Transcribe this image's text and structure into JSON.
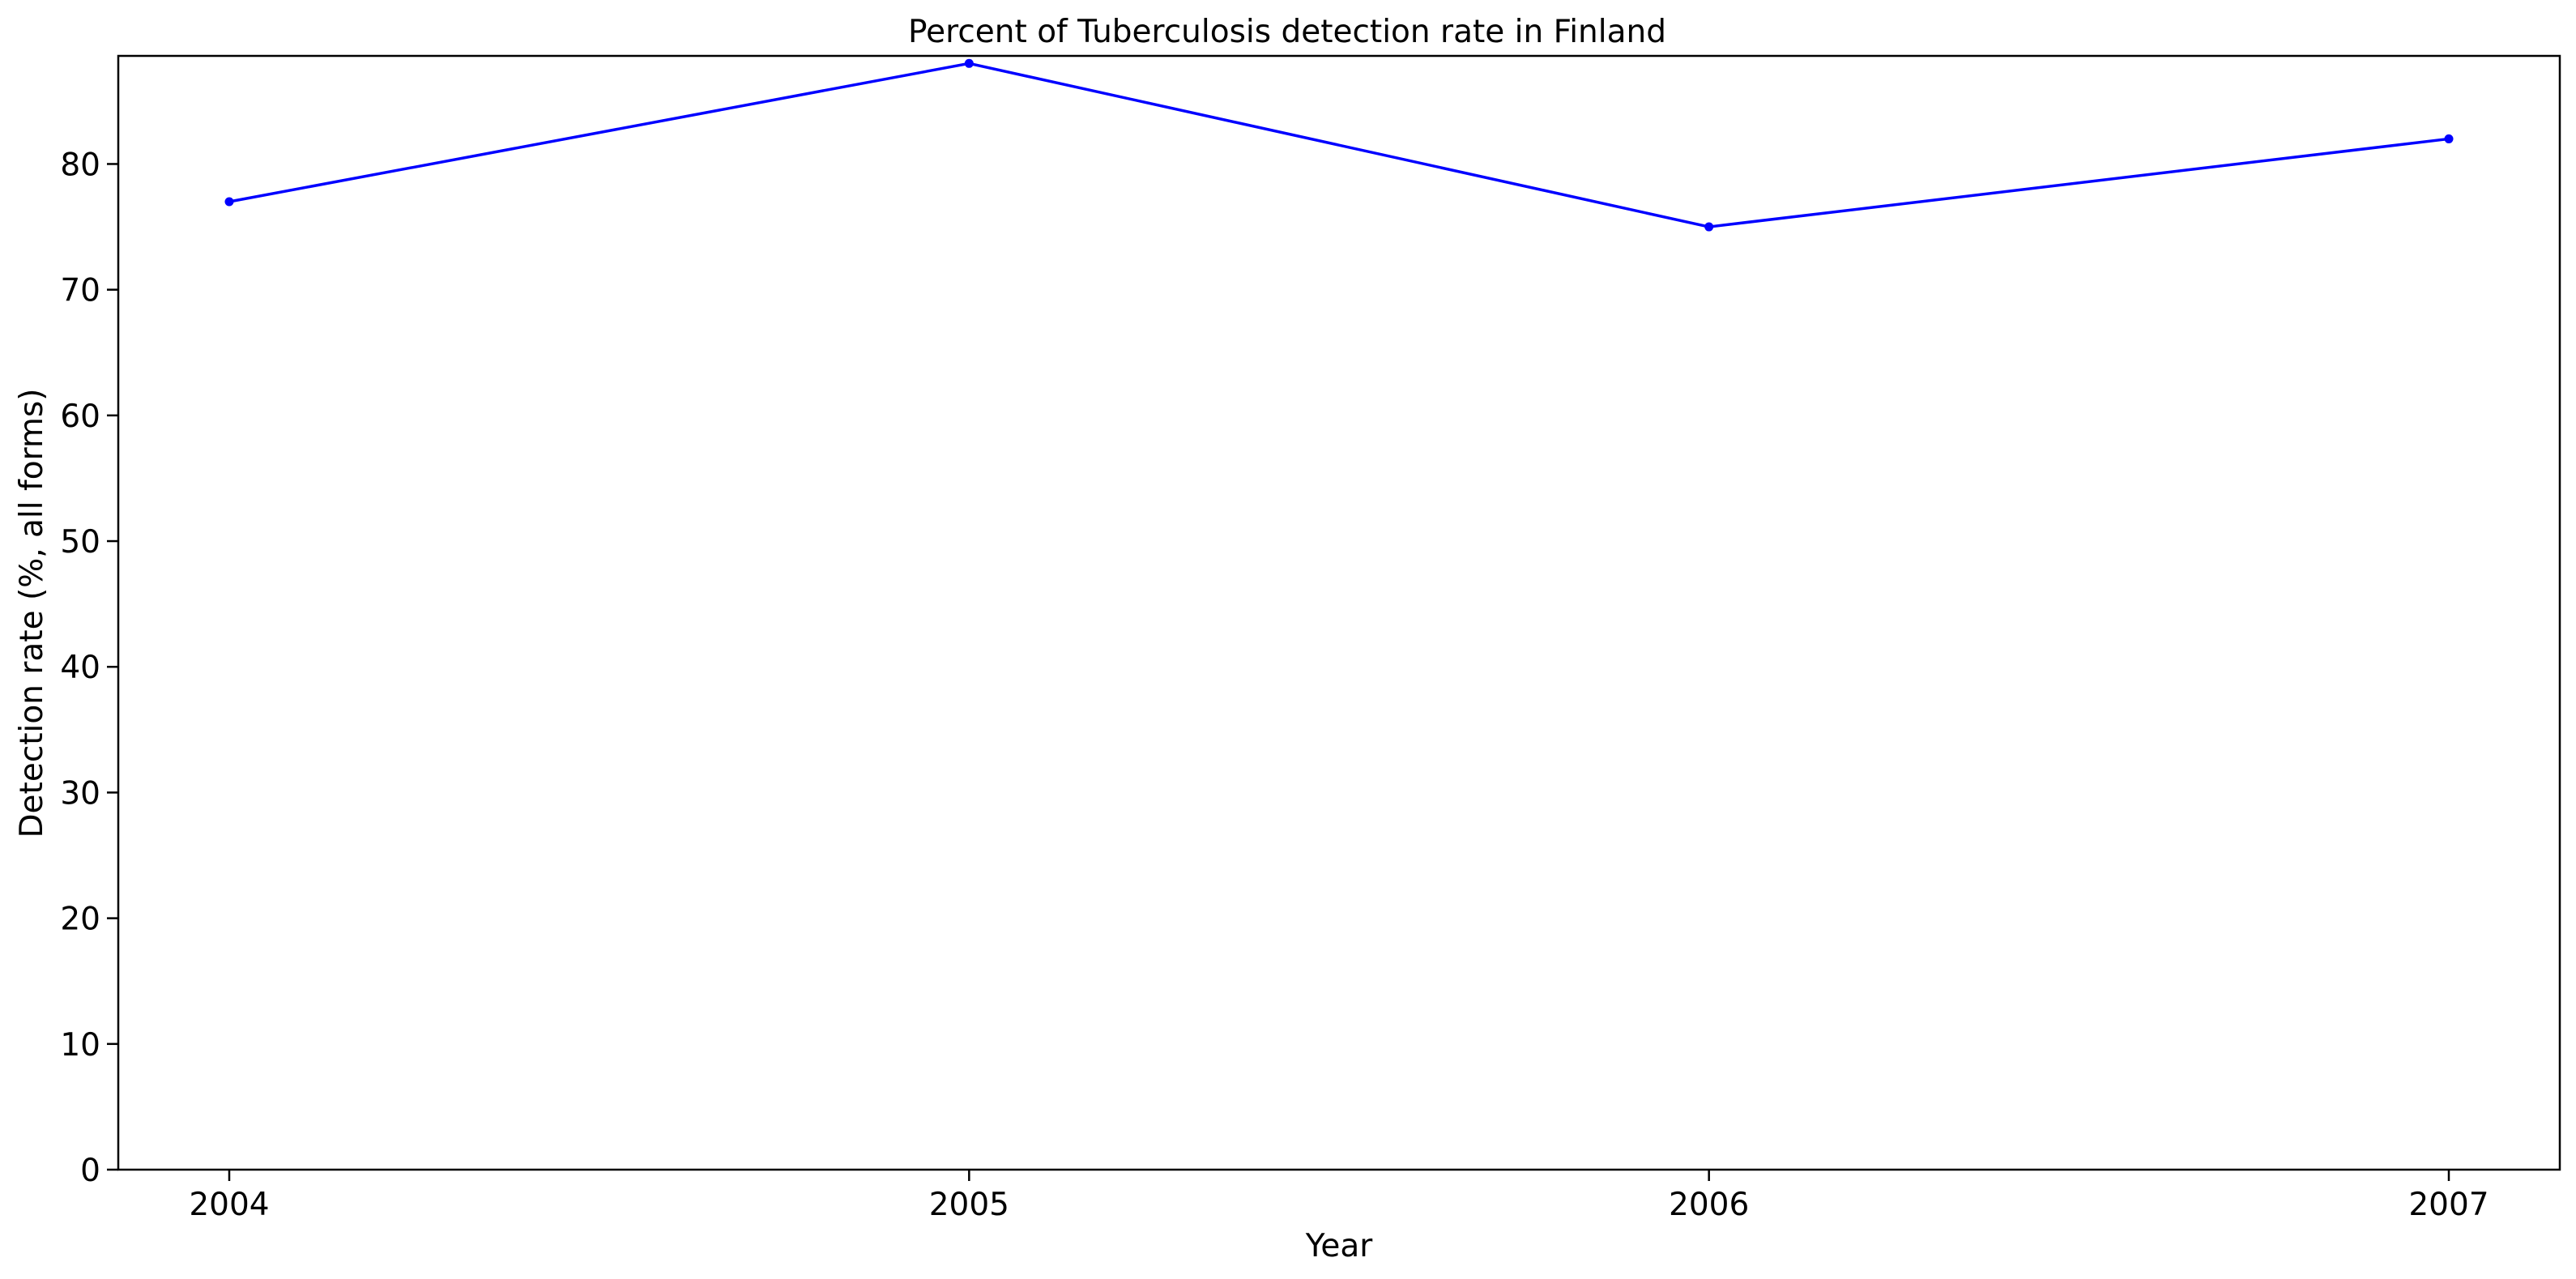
{
  "chart_data": {
    "type": "line",
    "title": "Percent of Tuberculosis detection rate in Finland",
    "xlabel": "Year",
    "ylabel": "Detection rate (%, all forms)",
    "x": [
      "2004",
      "2005",
      "2006",
      "2007"
    ],
    "series": [
      {
        "values": [
          77,
          88,
          75,
          82
        ],
        "color": "#0000ff"
      }
    ],
    "ylim": [
      0,
      88.6
    ],
    "yticks": [
      0,
      10,
      20,
      30,
      40,
      50,
      60,
      70,
      80
    ],
    "grid": false,
    "legend": "none"
  }
}
